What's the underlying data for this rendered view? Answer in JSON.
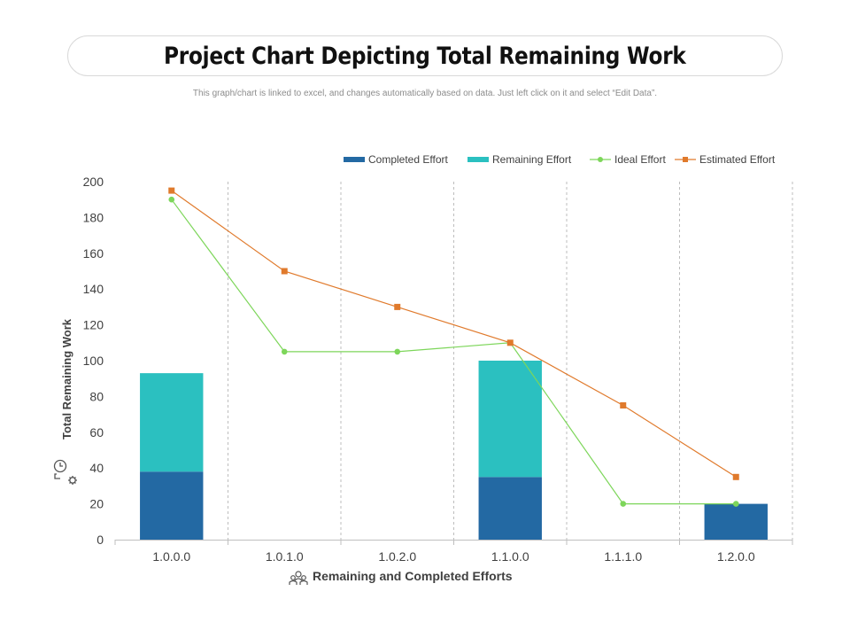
{
  "header": {
    "title": "Project Chart Depicting Total Remaining Work",
    "subtitle": "This graph/chart is linked to excel, and changes automatically  based on data. Just left click on it and select “Edit Data”."
  },
  "icons": {
    "y_axis_icon": "clock-gear-icon",
    "x_axis_icon": "team-icon"
  },
  "chart_data": {
    "type": "bar",
    "title": "",
    "xlabel": "Remaining and Completed Efforts",
    "ylabel": "Total Remaining Work",
    "categories": [
      "1.0.0.0",
      "1.0.1.0",
      "1.0.2.0",
      "1.1.0.0",
      "1.1.1.0",
      "1.2.0.0"
    ],
    "ylim": [
      0,
      200
    ],
    "yticks": [
      0,
      20,
      40,
      60,
      80,
      100,
      120,
      140,
      160,
      180,
      200
    ],
    "legend_position": "top-right",
    "grid": "vertical dashed",
    "series": [
      {
        "name": "Completed Effort",
        "type": "bar",
        "stack": "effort",
        "color": "#2369a3",
        "values": [
          38,
          null,
          null,
          35,
          null,
          20
        ]
      },
      {
        "name": "Remaining Effort",
        "type": "bar",
        "stack": "effort",
        "color": "#2bc0c0",
        "values": [
          55,
          null,
          null,
          65,
          null,
          null
        ]
      },
      {
        "name": "Ideal Effort",
        "type": "line",
        "marker": "circle",
        "color": "#7dd65a",
        "values": [
          190,
          105,
          105,
          110,
          20,
          20
        ]
      },
      {
        "name": "Estimated Effort",
        "type": "line",
        "marker": "square",
        "color": "#e07a2c",
        "values": [
          195,
          150,
          130,
          110,
          75,
          35
        ]
      }
    ]
  }
}
